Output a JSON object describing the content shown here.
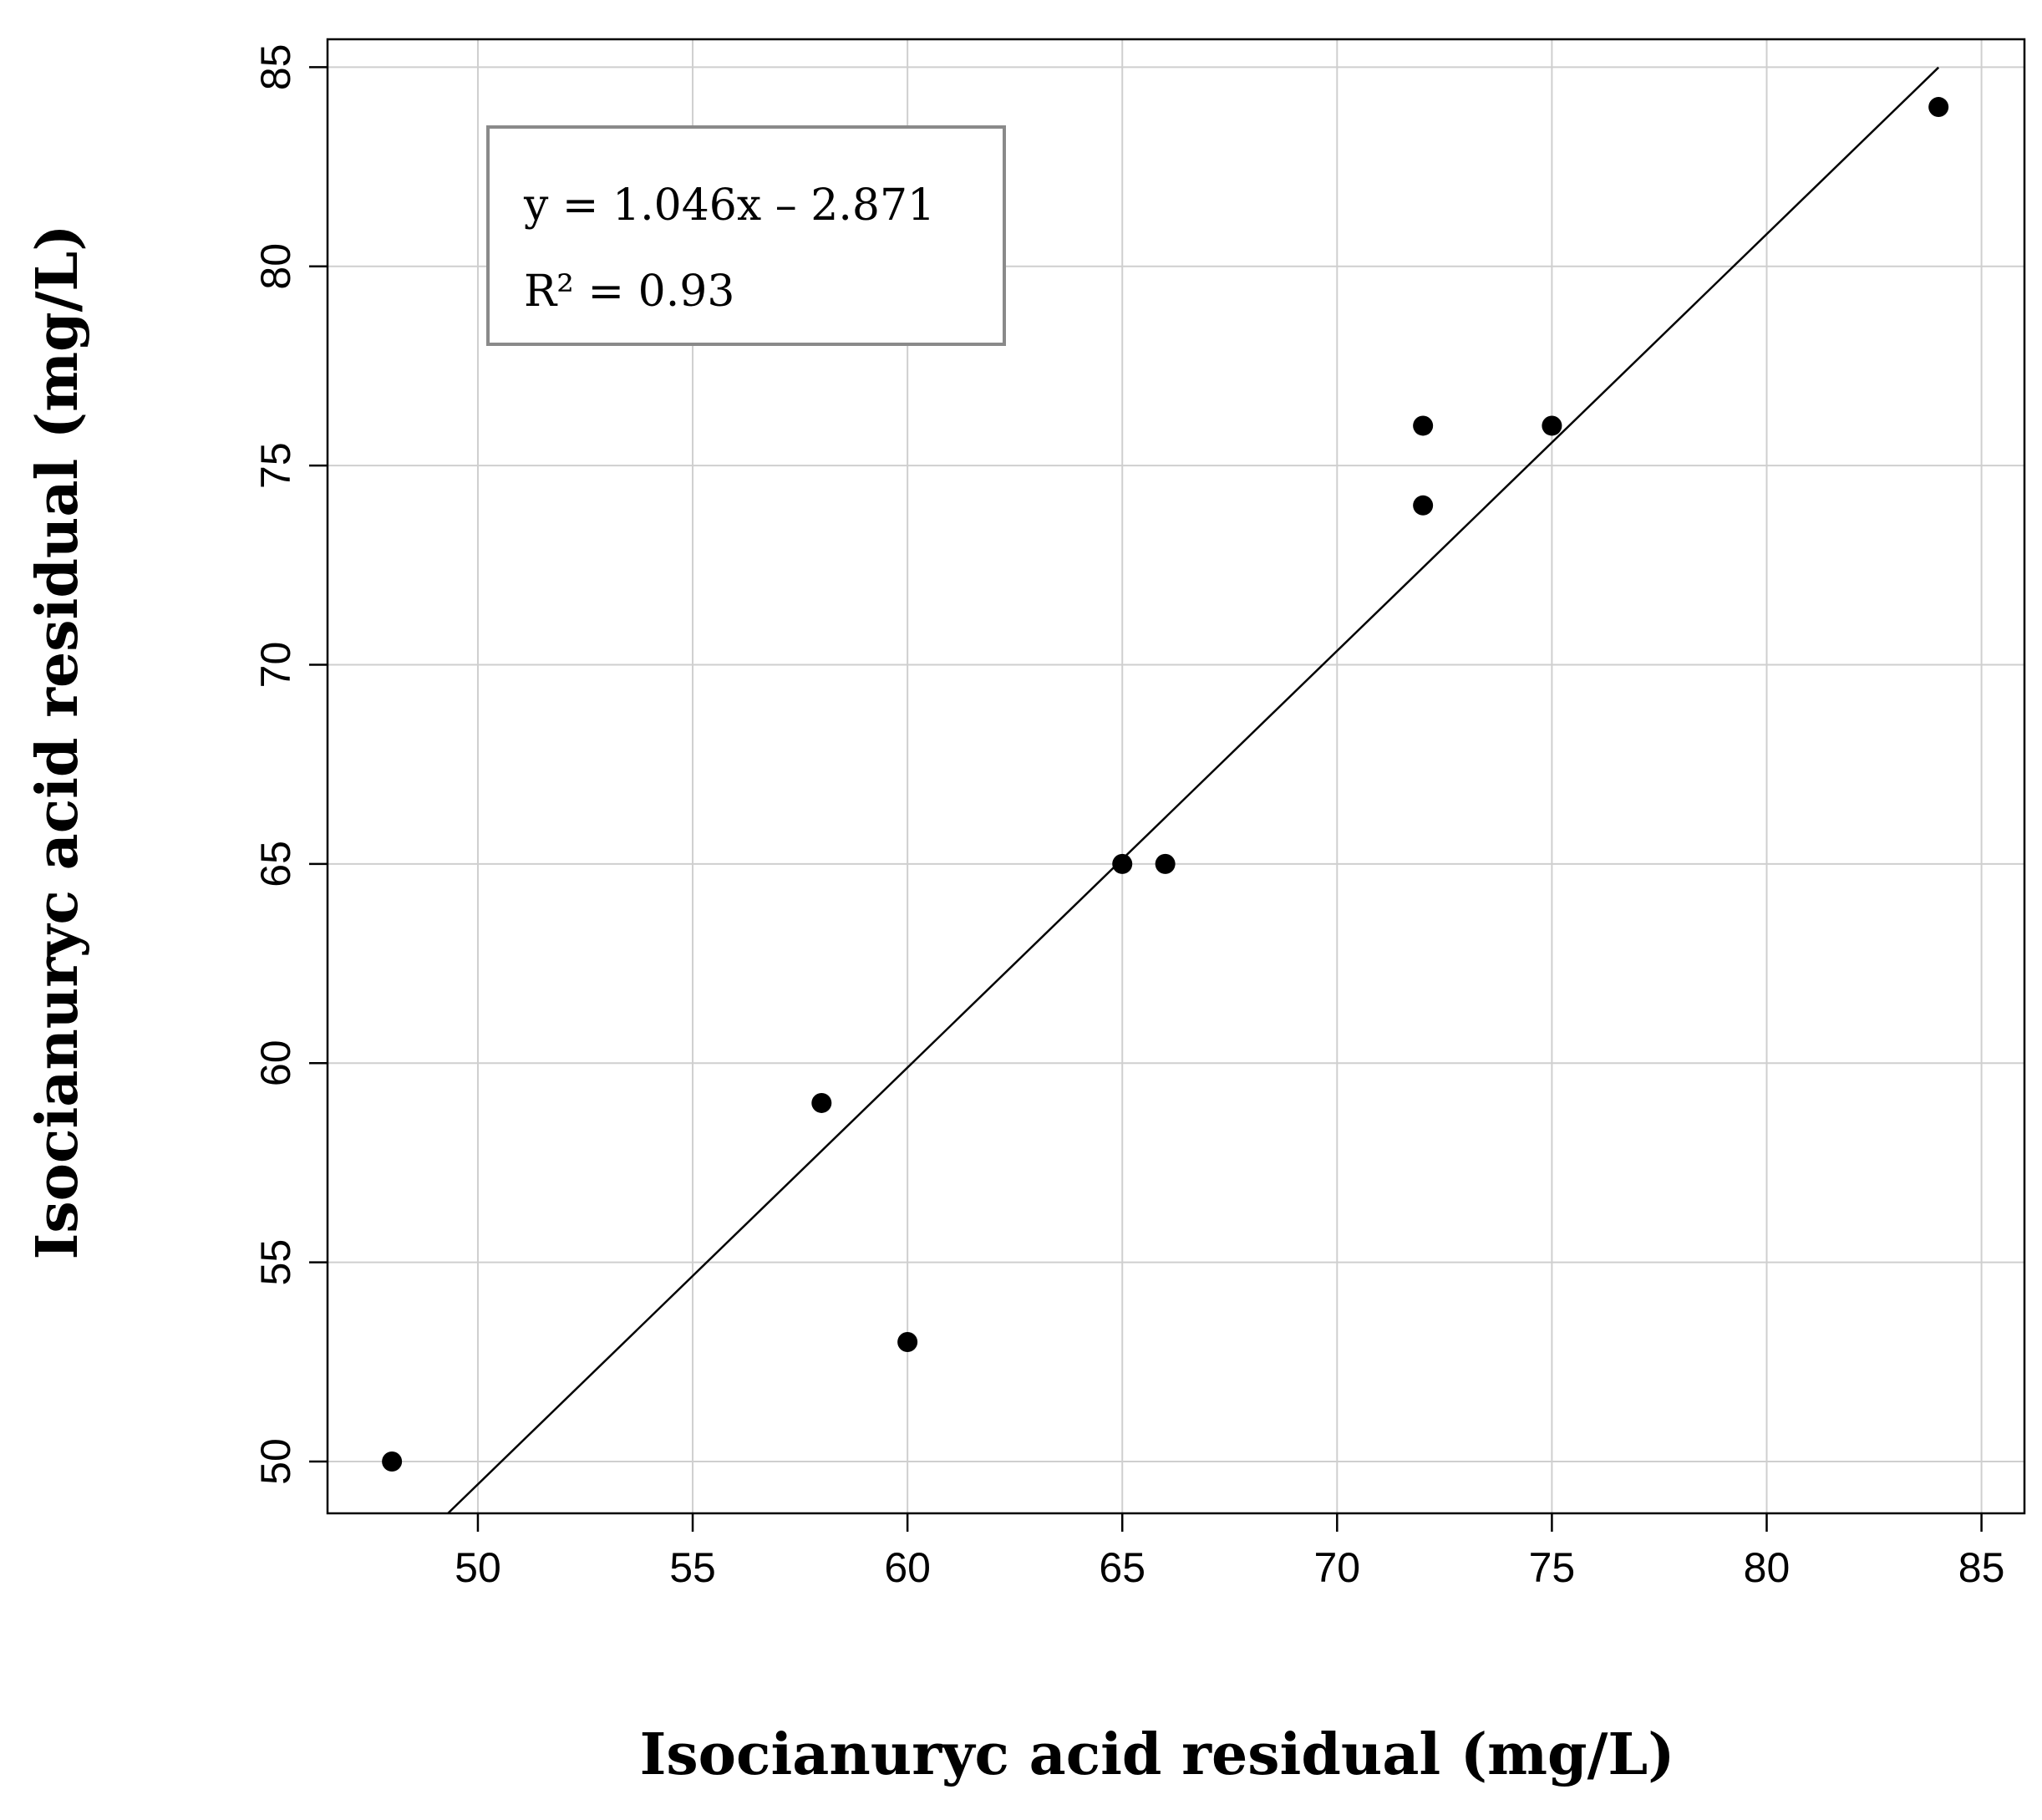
{
  "chart_data": {
    "type": "scatter",
    "xlabel": "Isocianuryc acid residual (mg/L)",
    "ylabel": "Isocianuryc acid residual  (mg/L)",
    "xlim": [
      46.5,
      86
    ],
    "ylim": [
      48.7,
      85.7
    ],
    "xticks": [
      50,
      55,
      60,
      65,
      70,
      75,
      80,
      85
    ],
    "yticks": [
      50,
      55,
      60,
      65,
      70,
      75,
      80,
      85
    ],
    "grid": true,
    "points": [
      {
        "x": 48,
        "y": 50
      },
      {
        "x": 58,
        "y": 59
      },
      {
        "x": 60,
        "y": 53
      },
      {
        "x": 65,
        "y": 65
      },
      {
        "x": 66,
        "y": 65
      },
      {
        "x": 72,
        "y": 76
      },
      {
        "x": 72,
        "y": 74
      },
      {
        "x": 75,
        "y": 76
      },
      {
        "x": 84,
        "y": 84
      }
    ],
    "fit": {
      "slope": 1.046,
      "intercept": -2.871
    },
    "annotation": {
      "equation": "y  =  1.046x  –  2.871",
      "r2": "R² = 0.93"
    }
  }
}
